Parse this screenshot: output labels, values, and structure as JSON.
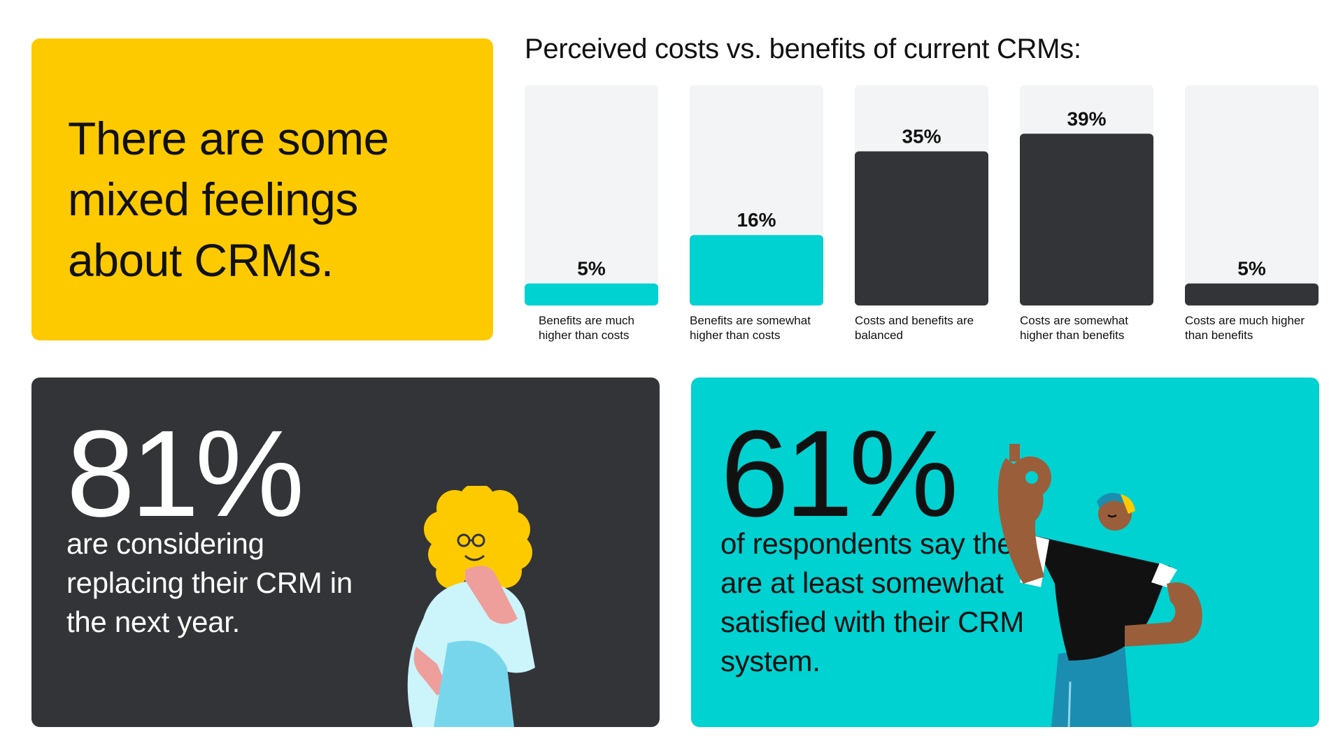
{
  "headline": "There are some mixed feelings about CRMs.",
  "chart_data": {
    "type": "bar",
    "title": "Perceived costs vs. benefits of current CRMs:",
    "xlabel": "",
    "ylabel": "",
    "ylim": [
      0,
      50
    ],
    "categories": [
      [
        "Benefits are much",
        "higher than costs"
      ],
      [
        "Benefits are somewhat",
        "higher than costs"
      ],
      [
        "Costs and benefits are",
        "balanced"
      ],
      [
        "Costs are somewhat",
        "higher than benefits"
      ],
      [
        "Costs are much higher",
        "than benefits"
      ]
    ],
    "values": [
      5,
      16,
      35,
      39,
      5
    ],
    "value_labels": [
      "5%",
      "16%",
      "35%",
      "39%",
      "5%"
    ],
    "bar_colors": [
      "#00D1D1",
      "#00D1D1",
      "#333438",
      "#333438",
      "#333438"
    ],
    "track_color": "#F3F4F6",
    "grid": false,
    "legend": "none"
  },
  "stat_left": {
    "value": "81%",
    "text": "are considering replacing their CRM in the next year.",
    "background": "#333438"
  },
  "stat_right": {
    "value": "61%",
    "text": "of respondents say they are at least somewhat satisfied with their CRM system.",
    "background": "#00D1D1"
  },
  "colors": {
    "yellow": "#FDCA00",
    "dark": "#333438",
    "cyan": "#00D1D1"
  }
}
